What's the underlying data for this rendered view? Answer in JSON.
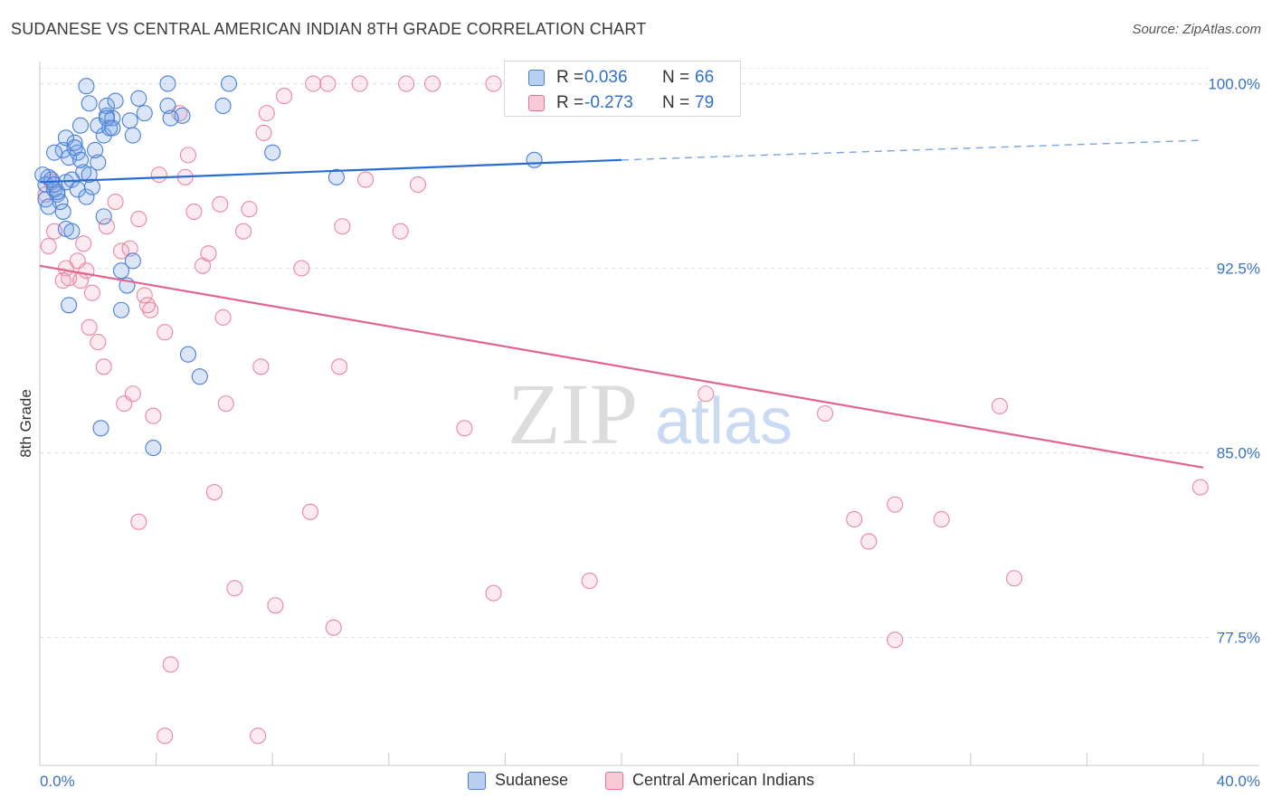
{
  "header": {
    "title": "SUDANESE VS CENTRAL AMERICAN INDIAN 8TH GRADE CORRELATION CHART",
    "source": "Source: ZipAtlas.com"
  },
  "watermark": {
    "zip": "ZIP",
    "atlas": "atlas"
  },
  "stats_box": {
    "rows": [
      {
        "r_label": "R =",
        "r_value": "0.036",
        "n_label": "N =",
        "n_value": "66",
        "color": "#4a7fd4"
      },
      {
        "r_label": "R =",
        "r_value": "-0.273",
        "n_label": "N =",
        "n_value": "79",
        "color": "#e8708f"
      }
    ]
  },
  "legend": [
    {
      "label": "Sudanese",
      "color": "#4a7fd4"
    },
    {
      "label": "Central American Indians",
      "color": "#e8708f"
    }
  ],
  "chart_data": {
    "type": "scatter",
    "title": "SUDANESE VS CENTRAL AMERICAN INDIAN 8TH GRADE CORRELATION CHART",
    "xlabel": "",
    "ylabel": "8th Grade",
    "xlim": [
      0,
      40
    ],
    "ylim": [
      72.3,
      100.9
    ],
    "x_tick_labels": [
      "0.0%",
      "40.0%"
    ],
    "y_ticks": [
      77.5,
      85.0,
      92.5,
      100.0
    ],
    "y_tick_labels": [
      "77.5%",
      "85.0%",
      "92.5%",
      "100.0%"
    ],
    "grid": true,
    "legend_position": "bottom",
    "series": [
      {
        "name": "Sudanese",
        "color": "#4a7fd4",
        "trend": {
          "x": [
            0,
            20
          ],
          "y": [
            96.0,
            96.9
          ],
          "dashed_to_x": 40,
          "dashed_to_y": 97.7
        },
        "points": [
          [
            0.3,
            96.2
          ],
          [
            0.2,
            95.9
          ],
          [
            0.5,
            95.7
          ],
          [
            0.4,
            96.1
          ],
          [
            0.6,
            95.5
          ],
          [
            0.2,
            95.3
          ],
          [
            0.9,
            96.0
          ],
          [
            0.1,
            96.3
          ],
          [
            0.8,
            97.3
          ],
          [
            1.3,
            97.2
          ],
          [
            1.2,
            97.6
          ],
          [
            0.9,
            97.8
          ],
          [
            1.5,
            96.4
          ],
          [
            1.0,
            97.0
          ],
          [
            1.4,
            96.9
          ],
          [
            2.2,
            97.9
          ],
          [
            2.0,
            98.3
          ],
          [
            2.3,
            98.7
          ],
          [
            2.5,
            98.6
          ],
          [
            1.7,
            99.2
          ],
          [
            2.3,
            99.1
          ],
          [
            2.6,
            99.3
          ],
          [
            3.4,
            99.4
          ],
          [
            3.6,
            98.8
          ],
          [
            4.4,
            99.1
          ],
          [
            4.9,
            98.7
          ],
          [
            1.6,
            99.9
          ],
          [
            4.4,
            100.0
          ],
          [
            6.5,
            100.0
          ],
          [
            6.3,
            99.1
          ],
          [
            2.0,
            96.8
          ],
          [
            1.7,
            96.3
          ],
          [
            1.1,
            96.1
          ],
          [
            1.3,
            95.7
          ],
          [
            0.5,
            97.2
          ],
          [
            1.2,
            97.4
          ],
          [
            1.9,
            97.3
          ],
          [
            3.1,
            98.5
          ],
          [
            3.2,
            97.9
          ],
          [
            1.4,
            98.3
          ],
          [
            2.4,
            98.2
          ],
          [
            4.5,
            98.6
          ],
          [
            0.7,
            95.2
          ],
          [
            1.6,
            95.4
          ],
          [
            0.8,
            94.8
          ],
          [
            2.2,
            94.6
          ],
          [
            0.9,
            94.1
          ],
          [
            1.1,
            94.0
          ],
          [
            3.2,
            92.8
          ],
          [
            2.8,
            92.4
          ],
          [
            3.0,
            91.8
          ],
          [
            1.0,
            91.0
          ],
          [
            2.8,
            90.8
          ],
          [
            5.1,
            89.0
          ],
          [
            5.5,
            88.1
          ],
          [
            2.1,
            86.0
          ],
          [
            3.9,
            85.2
          ],
          [
            1.8,
            95.8
          ],
          [
            0.6,
            95.6
          ],
          [
            10.2,
            96.2
          ],
          [
            8.0,
            97.2
          ],
          [
            17.0,
            96.9
          ],
          [
            2.5,
            98.2
          ],
          [
            0.3,
            95.0
          ],
          [
            0.5,
            95.9
          ],
          [
            2.3,
            98.6
          ]
        ]
      },
      {
        "name": "Central American Indians",
        "color": "#e8708f",
        "trend": {
          "x": [
            0,
            40
          ],
          "y": [
            92.6,
            84.4
          ]
        },
        "points": [
          [
            0.4,
            96.0
          ],
          [
            0.5,
            94.0
          ],
          [
            0.3,
            93.4
          ],
          [
            0.9,
            92.5
          ],
          [
            1.0,
            92.1
          ],
          [
            1.3,
            92.8
          ],
          [
            0.8,
            92.0
          ],
          [
            1.4,
            92.0
          ],
          [
            1.6,
            92.4
          ],
          [
            1.5,
            93.5
          ],
          [
            1.8,
            91.5
          ],
          [
            2.0,
            89.5
          ],
          [
            1.7,
            90.1
          ],
          [
            2.2,
            88.5
          ],
          [
            2.3,
            94.2
          ],
          [
            2.6,
            95.2
          ],
          [
            2.8,
            93.2
          ],
          [
            2.9,
            87.0
          ],
          [
            3.1,
            93.3
          ],
          [
            3.2,
            87.4
          ],
          [
            3.4,
            94.5
          ],
          [
            3.6,
            91.4
          ],
          [
            3.8,
            90.8
          ],
          [
            3.9,
            86.5
          ],
          [
            4.1,
            96.3
          ],
          [
            4.3,
            89.9
          ],
          [
            4.5,
            76.4
          ],
          [
            5.1,
            97.1
          ],
          [
            5.0,
            96.2
          ],
          [
            5.3,
            94.8
          ],
          [
            5.6,
            92.6
          ],
          [
            5.8,
            93.1
          ],
          [
            6.2,
            95.1
          ],
          [
            6.4,
            87.0
          ],
          [
            6.7,
            79.5
          ],
          [
            7.0,
            94.0
          ],
          [
            7.2,
            94.9
          ],
          [
            7.6,
            88.5
          ],
          [
            7.8,
            98.8
          ],
          [
            8.1,
            78.8
          ],
          [
            8.4,
            99.5
          ],
          [
            9.0,
            92.5
          ],
          [
            9.3,
            82.6
          ],
          [
            9.4,
            100.0
          ],
          [
            9.9,
            100.0
          ],
          [
            10.3,
            88.5
          ],
          [
            10.4,
            94.2
          ],
          [
            11.0,
            100.0
          ],
          [
            11.2,
            96.1
          ],
          [
            12.6,
            100.0
          ],
          [
            12.4,
            94.0
          ],
          [
            13.0,
            95.9
          ],
          [
            13.5,
            100.0
          ],
          [
            14.6,
            86.0
          ],
          [
            15.6,
            100.0
          ],
          [
            15.6,
            79.3
          ],
          [
            17.0,
            100.0
          ],
          [
            18.9,
            79.8
          ],
          [
            22.5,
            100.0
          ],
          [
            22.9,
            87.4
          ],
          [
            27.0,
            86.6
          ],
          [
            28.0,
            82.3
          ],
          [
            28.5,
            81.4
          ],
          [
            29.4,
            82.9
          ],
          [
            29.4,
            77.4
          ],
          [
            31.0,
            82.3
          ],
          [
            33.0,
            86.9
          ],
          [
            33.5,
            79.9
          ],
          [
            39.9,
            83.6
          ],
          [
            3.4,
            82.2
          ],
          [
            4.3,
            73.5
          ],
          [
            7.5,
            73.5
          ],
          [
            6.3,
            90.5
          ],
          [
            6.0,
            83.4
          ],
          [
            4.8,
            98.8
          ],
          [
            3.7,
            91.0
          ],
          [
            10.1,
            77.9
          ],
          [
            7.7,
            98.0
          ],
          [
            0.2,
            95.5
          ]
        ]
      }
    ]
  }
}
